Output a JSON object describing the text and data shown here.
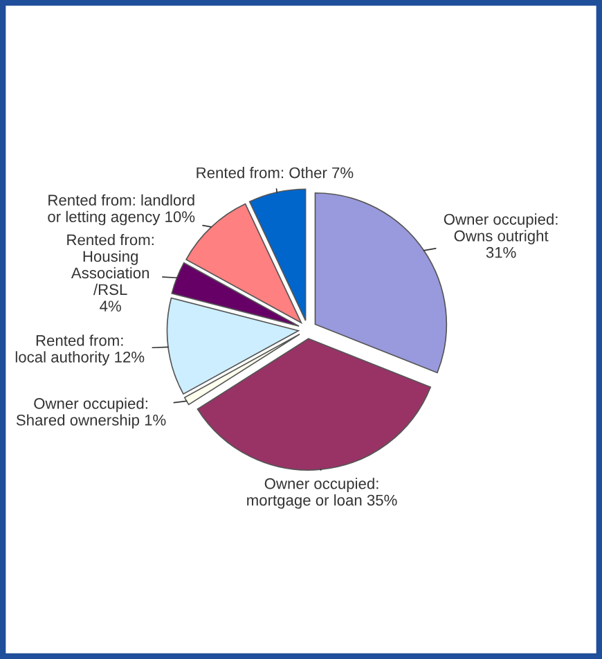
{
  "chart_data": {
    "type": "pie",
    "categories": [
      "Owner occupied:\nOwns outright",
      "Owner occupied:\nmortgage or loan",
      "Owner occupied:\nShared ownership",
      "Rented from:\nlocal authority",
      "Rented from:\nHousing\nAssociation\n/RSL",
      "Rented from: landlord\nor letting agency",
      "Rented from: Other"
    ],
    "values": [
      31,
      35,
      1,
      12,
      4,
      10,
      7
    ],
    "value_labels": [
      "31%",
      "35%",
      "1%",
      "12%",
      "4%",
      "10%",
      "7%"
    ],
    "colors": [
      "#9999dd",
      "#993366",
      "#ffffee",
      "#cceeff",
      "#660066",
      "#ff8080",
      "#0066cc"
    ]
  }
}
